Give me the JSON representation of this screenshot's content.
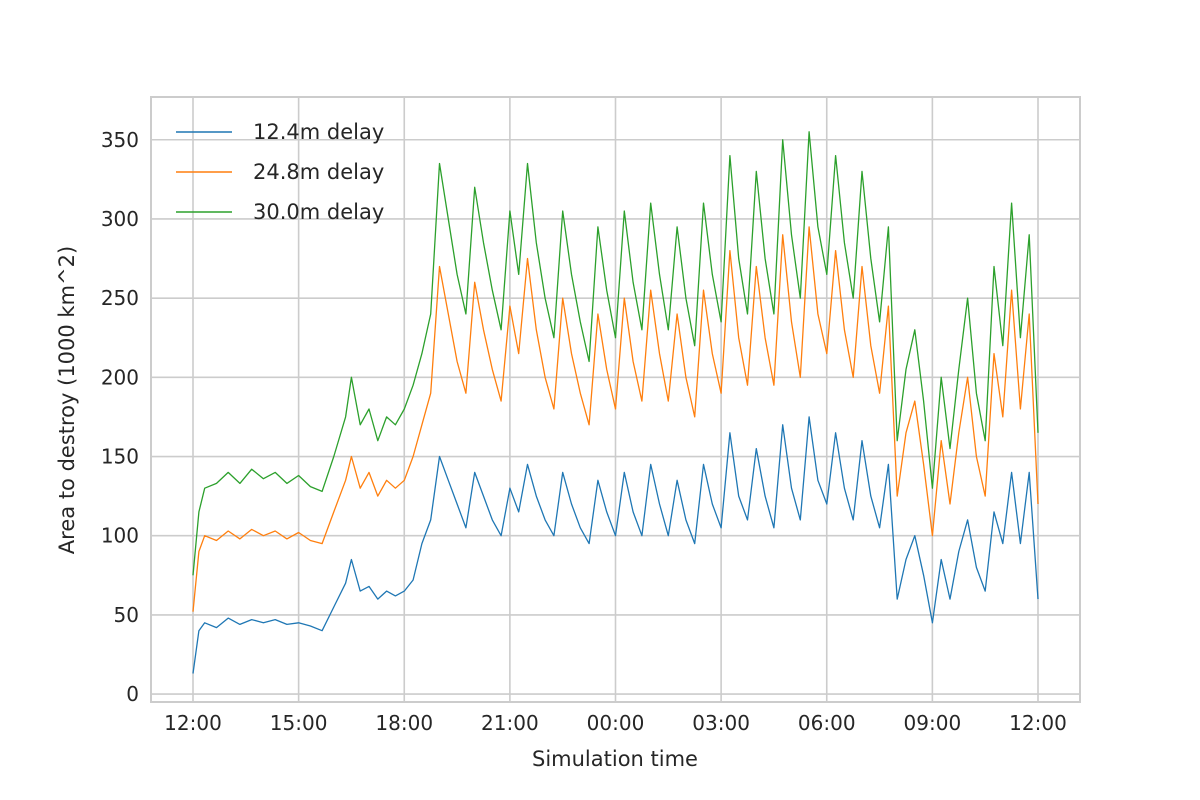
{
  "chart_data": {
    "type": "line",
    "title": "",
    "xlabel": "Simulation time",
    "ylabel": "Area to destroy (1000 km^2)",
    "x_unit": "time of day (HH:MM), 12:00 day 1 to 12:00 day 2",
    "x_ticks": [
      "12:00",
      "15:00",
      "18:00",
      "21:00",
      "00:00",
      "03:00",
      "06:00",
      "09:00",
      "12:00"
    ],
    "y_ticks": [
      0,
      50,
      100,
      150,
      200,
      250,
      300,
      350
    ],
    "ylim": [
      -5,
      377
    ],
    "grid": true,
    "legend_position": "top-left",
    "series": [
      {
        "name": "12.4m delay",
        "color": "#1f77b4",
        "points": [
          [
            "12:00",
            13
          ],
          [
            "12:10",
            40
          ],
          [
            "12:20",
            45
          ],
          [
            "12:40",
            42
          ],
          [
            "13:00",
            48
          ],
          [
            "13:20",
            44
          ],
          [
            "13:40",
            47
          ],
          [
            "14:00",
            45
          ],
          [
            "14:20",
            47
          ],
          [
            "14:40",
            44
          ],
          [
            "15:00",
            45
          ],
          [
            "15:20",
            43
          ],
          [
            "15:40",
            40
          ],
          [
            "16:00",
            55
          ],
          [
            "16:20",
            70
          ],
          [
            "16:30",
            85
          ],
          [
            "16:45",
            65
          ],
          [
            "17:00",
            68
          ],
          [
            "17:15",
            60
          ],
          [
            "17:30",
            65
          ],
          [
            "17:45",
            62
          ],
          [
            "18:00",
            65
          ],
          [
            "18:15",
            72
          ],
          [
            "18:30",
            95
          ],
          [
            "18:45",
            110
          ],
          [
            "19:00",
            150
          ],
          [
            "19:15",
            135
          ],
          [
            "19:30",
            120
          ],
          [
            "19:45",
            105
          ],
          [
            "20:00",
            140
          ],
          [
            "20:15",
            125
          ],
          [
            "20:30",
            110
          ],
          [
            "20:45",
            100
          ],
          [
            "21:00",
            130
          ],
          [
            "21:15",
            115
          ],
          [
            "21:30",
            145
          ],
          [
            "21:45",
            125
          ],
          [
            "22:00",
            110
          ],
          [
            "22:15",
            100
          ],
          [
            "22:30",
            140
          ],
          [
            "22:45",
            120
          ],
          [
            "23:00",
            105
          ],
          [
            "23:15",
            95
          ],
          [
            "23:30",
            135
          ],
          [
            "23:45",
            115
          ],
          [
            "00:00",
            100
          ],
          [
            "00:15",
            140
          ],
          [
            "00:30",
            115
          ],
          [
            "00:45",
            100
          ],
          [
            "01:00",
            145
          ],
          [
            "01:15",
            120
          ],
          [
            "01:30",
            100
          ],
          [
            "01:45",
            135
          ],
          [
            "02:00",
            110
          ],
          [
            "02:15",
            95
          ],
          [
            "02:30",
            145
          ],
          [
            "02:45",
            120
          ],
          [
            "03:00",
            105
          ],
          [
            "03:15",
            165
          ],
          [
            "03:30",
            125
          ],
          [
            "03:45",
            110
          ],
          [
            "04:00",
            155
          ],
          [
            "04:15",
            125
          ],
          [
            "04:30",
            105
          ],
          [
            "04:45",
            170
          ],
          [
            "05:00",
            130
          ],
          [
            "05:15",
            110
          ],
          [
            "05:30",
            175
          ],
          [
            "05:45",
            135
          ],
          [
            "06:00",
            120
          ],
          [
            "06:15",
            165
          ],
          [
            "06:30",
            130
          ],
          [
            "06:45",
            110
          ],
          [
            "07:00",
            160
          ],
          [
            "07:15",
            125
          ],
          [
            "07:30",
            105
          ],
          [
            "07:45",
            145
          ],
          [
            "08:00",
            60
          ],
          [
            "08:15",
            85
          ],
          [
            "08:30",
            100
          ],
          [
            "08:45",
            75
          ],
          [
            "09:00",
            45
          ],
          [
            "09:15",
            85
          ],
          [
            "09:30",
            60
          ],
          [
            "09:45",
            90
          ],
          [
            "10:00",
            110
          ],
          [
            "10:15",
            80
          ],
          [
            "10:30",
            65
          ],
          [
            "10:45",
            115
          ],
          [
            "11:00",
            95
          ],
          [
            "11:15",
            140
          ],
          [
            "11:30",
            95
          ],
          [
            "11:45",
            140
          ],
          [
            "12:00",
            60
          ]
        ]
      },
      {
        "name": "24.8m delay",
        "color": "#ff7f0e",
        "points": [
          [
            "12:00",
            52
          ],
          [
            "12:10",
            90
          ],
          [
            "12:20",
            100
          ],
          [
            "12:40",
            97
          ],
          [
            "13:00",
            103
          ],
          [
            "13:20",
            98
          ],
          [
            "13:40",
            104
          ],
          [
            "14:00",
            100
          ],
          [
            "14:20",
            103
          ],
          [
            "14:40",
            98
          ],
          [
            "15:00",
            102
          ],
          [
            "15:20",
            97
          ],
          [
            "15:40",
            95
          ],
          [
            "16:00",
            115
          ],
          [
            "16:20",
            135
          ],
          [
            "16:30",
            150
          ],
          [
            "16:45",
            130
          ],
          [
            "17:00",
            140
          ],
          [
            "17:15",
            125
          ],
          [
            "17:30",
            135
          ],
          [
            "17:45",
            130
          ],
          [
            "18:00",
            135
          ],
          [
            "18:15",
            150
          ],
          [
            "18:30",
            170
          ],
          [
            "18:45",
            190
          ],
          [
            "19:00",
            270
          ],
          [
            "19:15",
            240
          ],
          [
            "19:30",
            210
          ],
          [
            "19:45",
            190
          ],
          [
            "20:00",
            260
          ],
          [
            "20:15",
            230
          ],
          [
            "20:30",
            205
          ],
          [
            "20:45",
            185
          ],
          [
            "21:00",
            245
          ],
          [
            "21:15",
            215
          ],
          [
            "21:30",
            275
          ],
          [
            "21:45",
            230
          ],
          [
            "22:00",
            200
          ],
          [
            "22:15",
            180
          ],
          [
            "22:30",
            250
          ],
          [
            "22:45",
            215
          ],
          [
            "23:00",
            190
          ],
          [
            "23:15",
            170
          ],
          [
            "23:30",
            240
          ],
          [
            "23:45",
            205
          ],
          [
            "00:00",
            180
          ],
          [
            "00:15",
            250
          ],
          [
            "00:30",
            210
          ],
          [
            "00:45",
            185
          ],
          [
            "01:00",
            255
          ],
          [
            "01:15",
            215
          ],
          [
            "01:30",
            185
          ],
          [
            "01:45",
            240
          ],
          [
            "02:00",
            200
          ],
          [
            "02:15",
            175
          ],
          [
            "02:30",
            255
          ],
          [
            "02:45",
            215
          ],
          [
            "03:00",
            190
          ],
          [
            "03:15",
            280
          ],
          [
            "03:30",
            225
          ],
          [
            "03:45",
            195
          ],
          [
            "04:00",
            270
          ],
          [
            "04:15",
            225
          ],
          [
            "04:30",
            195
          ],
          [
            "04:45",
            290
          ],
          [
            "05:00",
            235
          ],
          [
            "05:15",
            200
          ],
          [
            "05:30",
            295
          ],
          [
            "05:45",
            240
          ],
          [
            "06:00",
            215
          ],
          [
            "06:15",
            280
          ],
          [
            "06:30",
            230
          ],
          [
            "06:45",
            200
          ],
          [
            "07:00",
            270
          ],
          [
            "07:15",
            220
          ],
          [
            "07:30",
            190
          ],
          [
            "07:45",
            245
          ],
          [
            "08:00",
            125
          ],
          [
            "08:15",
            165
          ],
          [
            "08:30",
            185
          ],
          [
            "08:45",
            145
          ],
          [
            "09:00",
            100
          ],
          [
            "09:15",
            160
          ],
          [
            "09:30",
            120
          ],
          [
            "09:45",
            165
          ],
          [
            "10:00",
            200
          ],
          [
            "10:15",
            150
          ],
          [
            "10:30",
            125
          ],
          [
            "10:45",
            215
          ],
          [
            "11:00",
            175
          ],
          [
            "11:15",
            255
          ],
          [
            "11:30",
            180
          ],
          [
            "11:45",
            240
          ],
          [
            "12:00",
            120
          ]
        ]
      },
      {
        "name": "30.0m delay",
        "color": "#2ca02c",
        "points": [
          [
            "12:00",
            75
          ],
          [
            "12:10",
            115
          ],
          [
            "12:20",
            130
          ],
          [
            "12:40",
            133
          ],
          [
            "13:00",
            140
          ],
          [
            "13:20",
            133
          ],
          [
            "13:40",
            142
          ],
          [
            "14:00",
            136
          ],
          [
            "14:20",
            140
          ],
          [
            "14:40",
            133
          ],
          [
            "15:00",
            138
          ],
          [
            "15:20",
            131
          ],
          [
            "15:40",
            128
          ],
          [
            "16:00",
            150
          ],
          [
            "16:20",
            175
          ],
          [
            "16:30",
            200
          ],
          [
            "16:45",
            170
          ],
          [
            "17:00",
            180
          ],
          [
            "17:15",
            160
          ],
          [
            "17:30",
            175
          ],
          [
            "17:45",
            170
          ],
          [
            "18:00",
            180
          ],
          [
            "18:15",
            195
          ],
          [
            "18:30",
            215
          ],
          [
            "18:45",
            240
          ],
          [
            "19:00",
            335
          ],
          [
            "19:15",
            300
          ],
          [
            "19:30",
            265
          ],
          [
            "19:45",
            240
          ],
          [
            "20:00",
            320
          ],
          [
            "20:15",
            285
          ],
          [
            "20:30",
            255
          ],
          [
            "20:45",
            230
          ],
          [
            "21:00",
            305
          ],
          [
            "21:15",
            265
          ],
          [
            "21:30",
            335
          ],
          [
            "21:45",
            285
          ],
          [
            "22:00",
            250
          ],
          [
            "22:15",
            225
          ],
          [
            "22:30",
            305
          ],
          [
            "22:45",
            265
          ],
          [
            "23:00",
            235
          ],
          [
            "23:15",
            210
          ],
          [
            "23:30",
            295
          ],
          [
            "23:45",
            255
          ],
          [
            "00:00",
            225
          ],
          [
            "00:15",
            305
          ],
          [
            "00:30",
            260
          ],
          [
            "00:45",
            230
          ],
          [
            "01:00",
            310
          ],
          [
            "01:15",
            265
          ],
          [
            "01:30",
            230
          ],
          [
            "01:45",
            295
          ],
          [
            "02:00",
            250
          ],
          [
            "02:15",
            220
          ],
          [
            "02:30",
            310
          ],
          [
            "02:45",
            265
          ],
          [
            "03:00",
            235
          ],
          [
            "03:15",
            340
          ],
          [
            "03:30",
            275
          ],
          [
            "03:45",
            240
          ],
          [
            "04:00",
            330
          ],
          [
            "04:15",
            275
          ],
          [
            "04:30",
            240
          ],
          [
            "04:45",
            350
          ],
          [
            "05:00",
            290
          ],
          [
            "05:15",
            250
          ],
          [
            "05:30",
            355
          ],
          [
            "05:45",
            295
          ],
          [
            "06:00",
            265
          ],
          [
            "06:15",
            340
          ],
          [
            "06:30",
            285
          ],
          [
            "06:45",
            250
          ],
          [
            "07:00",
            330
          ],
          [
            "07:15",
            275
          ],
          [
            "07:30",
            235
          ],
          [
            "07:45",
            295
          ],
          [
            "08:00",
            160
          ],
          [
            "08:15",
            205
          ],
          [
            "08:30",
            230
          ],
          [
            "08:45",
            185
          ],
          [
            "09:00",
            130
          ],
          [
            "09:15",
            200
          ],
          [
            "09:30",
            155
          ],
          [
            "09:45",
            205
          ],
          [
            "10:00",
            250
          ],
          [
            "10:15",
            190
          ],
          [
            "10:30",
            160
          ],
          [
            "10:45",
            270
          ],
          [
            "11:00",
            220
          ],
          [
            "11:15",
            310
          ],
          [
            "11:30",
            225
          ],
          [
            "11:45",
            290
          ],
          [
            "12:00",
            165
          ]
        ]
      }
    ]
  },
  "colors": {
    "background": "#ffffff",
    "grid": "#cccccc",
    "axes_frame": "#cccccc",
    "text": "#262626"
  }
}
